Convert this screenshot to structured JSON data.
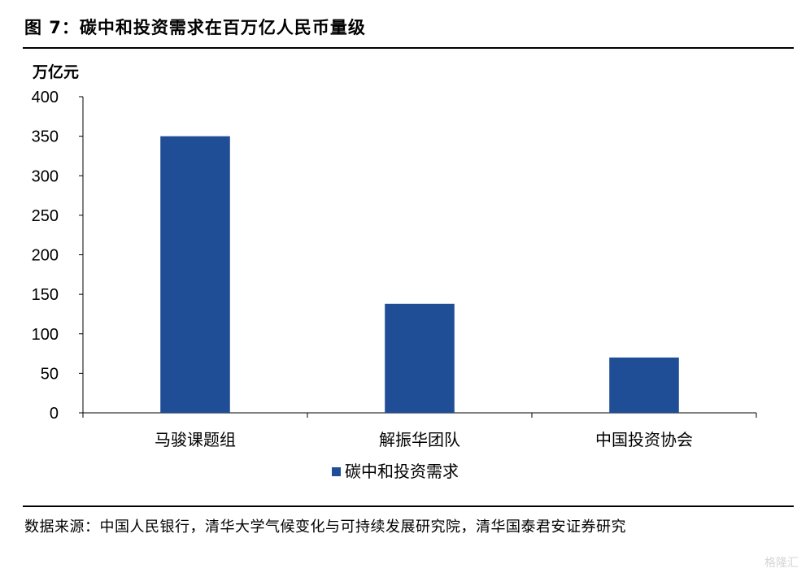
{
  "figure": {
    "title": "图 7：碳中和投资需求在百万亿人民币量级",
    "unit_label": "万亿元",
    "source": "数据来源：中国人民银行，清华大学气候变化与可持续发展研究院，清华国泰君安证券研究",
    "watermark": "格隆汇"
  },
  "chart_data": {
    "type": "bar",
    "categories": [
      "马骏课题组",
      "解振华团队",
      "中国投资协会"
    ],
    "series": [
      {
        "name": "碳中和投资需求",
        "values": [
          350,
          138,
          70
        ],
        "color": "#1F4E96"
      }
    ],
    "ylim": [
      0,
      400
    ],
    "yticks": [
      0,
      50,
      100,
      150,
      200,
      250,
      300,
      350,
      400
    ],
    "ylabel": "万亿元",
    "grid": false,
    "legend_position": "bottom"
  }
}
